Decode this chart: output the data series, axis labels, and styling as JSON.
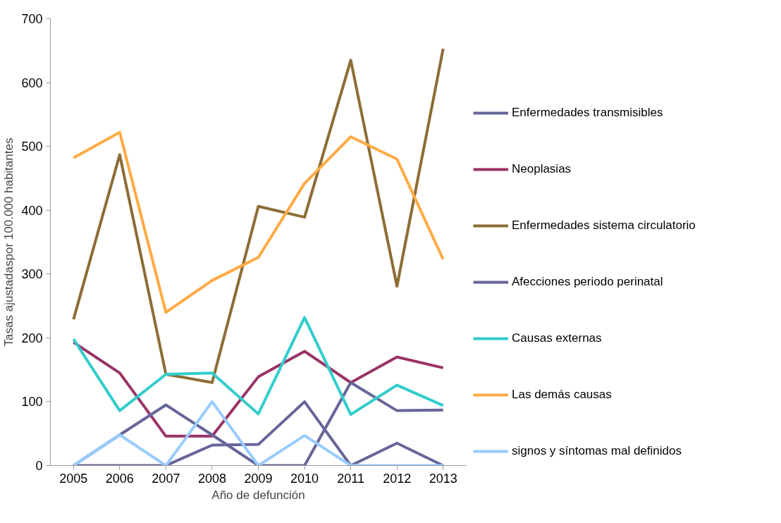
{
  "chart_data": {
    "type": "line",
    "xlabel": "Año de defunción",
    "ylabel": "Tasas ajustadaspor 100.000 habitantes",
    "categories": [
      "2005",
      "2006",
      "2007",
      "2008",
      "2009",
      "2010",
      "2011",
      "2012",
      "2013"
    ],
    "ylim": [
      0,
      700
    ],
    "yticks": [
      0,
      100,
      200,
      300,
      400,
      500,
      600,
      700
    ],
    "grid": false,
    "legend": "right",
    "marker": "none",
    "line_style": "solid",
    "series": [
      {
        "name": "Enfermedades transmisibles",
        "color": "#66669a",
        "values": [
          0,
          0,
          0,
          32,
          33,
          100,
          0,
          35,
          0
        ]
      },
      {
        "name": "Neoplasias",
        "color": "#993366",
        "values": [
          193,
          145,
          46,
          46,
          139,
          179,
          130,
          170,
          153
        ]
      },
      {
        "name": "Enfermedades sistema circulatorio",
        "color": "#8c6d35",
        "values": [
          229,
          487,
          143,
          130,
          406,
          389,
          635,
          281,
          653
        ]
      },
      {
        "name": "Afecciones periodo perinatal",
        "color": "#66669a",
        "values": [
          0,
          48,
          95,
          48,
          0,
          0,
          130,
          86,
          87
        ]
      },
      {
        "name": "Causas externas",
        "color": "#33cccc",
        "values": [
          198,
          86,
          143,
          145,
          81,
          232,
          80,
          126,
          94
        ]
      },
      {
        "name": "Las demás causas",
        "color": "#ffaa44",
        "values": [
          482,
          522,
          240,
          290,
          326,
          442,
          515,
          480,
          323
        ]
      },
      {
        "name": "signos y síntomas mal definidos",
        "color": "#99ccff",
        "values": [
          0,
          48,
          0,
          100,
          0,
          47,
          0,
          0,
          0
        ]
      }
    ]
  }
}
